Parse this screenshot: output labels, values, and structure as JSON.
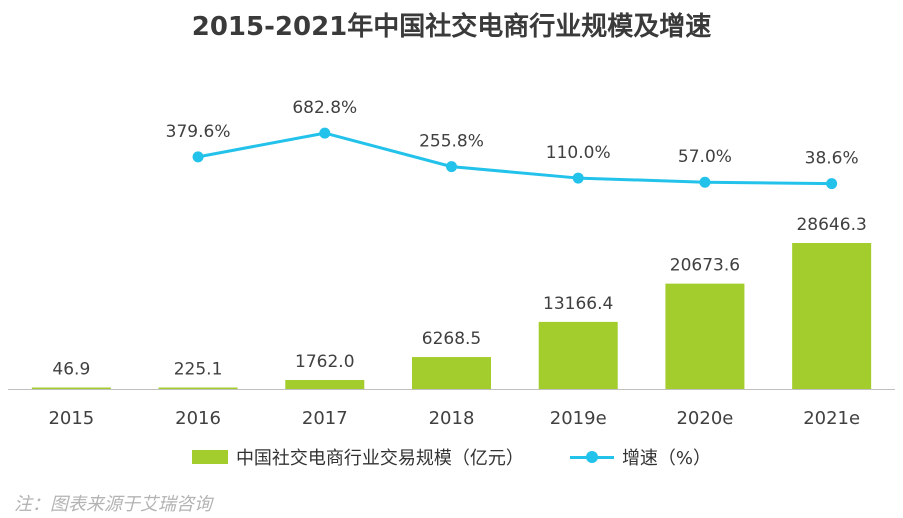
{
  "title": "2015-2021年中国社交电商行业规模及增速",
  "footnote": "注：图表来源于艾瑞咨询",
  "colors": {
    "bar": "#a3cd2c",
    "line": "#23c2ea",
    "text": "#404040",
    "axis": "#bfbfbf"
  },
  "legend": {
    "bar_label": "中国社交电商行业交易规模（亿元）",
    "line_label": "增速（%）"
  },
  "chart_data": {
    "type": "bar",
    "categories": [
      "2015",
      "2016",
      "2017",
      "2018",
      "2019e",
      "2020e",
      "2021e"
    ],
    "series": [
      {
        "name": "中国社交电商行业交易规模（亿元）",
        "type": "bar",
        "values": [
          46.9,
          225.1,
          1762.0,
          6268.5,
          13166.4,
          20673.6,
          28646.3
        ],
        "labels": [
          "46.9",
          "225.1",
          "1762.0",
          "6268.5",
          "13166.4",
          "20673.6",
          "28646.3"
        ]
      },
      {
        "name": "增速（%）",
        "type": "line",
        "values": [
          null,
          379.6,
          682.8,
          255.8,
          110.0,
          57.0,
          38.6
        ],
        "labels": [
          "",
          "379.6%",
          "682.8%",
          "255.8%",
          "110.0%",
          "57.0%",
          "38.6%"
        ]
      }
    ],
    "bar_axis_max": 28646.3,
    "line_ylim": [
      0,
      700
    ],
    "grid": false,
    "legend_position": "bottom"
  }
}
